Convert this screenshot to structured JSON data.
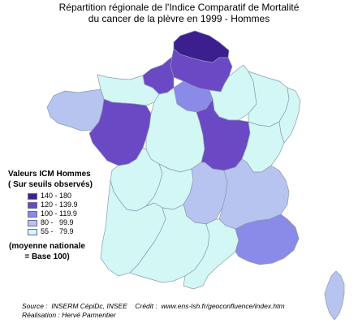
{
  "title": {
    "line1": "Répartition régionale de l'Indice Comparatif de Mortalité",
    "line2": "du cancer de la plèvre en 1999 - Hommes"
  },
  "legend": {
    "title1": "Valeurs ICM Hommes",
    "title2": "( Sur seuils observés)",
    "classes": [
      {
        "label": "140 - 180",
        "color": "#3c1f8f"
      },
      {
        "label": "120 - 139.9",
        "color": "#6b48c4"
      },
      {
        "label": "100 - 119.9",
        "color": "#8a8ae8"
      },
      {
        "label": "80 -   99.9",
        "color": "#b7c4f0"
      },
      {
        "label": "55 -   79.9",
        "color": "#d3f7f5"
      }
    ]
  },
  "note": {
    "line1": "(moyenne nationale",
    "line2": "= Base 100)"
  },
  "credits": {
    "source": "Source :  INSERM CépiDc, INSEE    Crédit :  www.ens-lsh.fr/geoconfluence/index.htm",
    "realisation": "Réalisation : Hervé Parmentier"
  },
  "regions": [
    {
      "name": "Nord-Pas-de-Calais",
      "class": 0
    },
    {
      "name": "Picardie",
      "class": 1
    },
    {
      "name": "Haute-Normandie",
      "class": 1
    },
    {
      "name": "Basse-Normandie",
      "class": 4
    },
    {
      "name": "Bretagne",
      "class": 3
    },
    {
      "name": "Pays de la Loire",
      "class": 1
    },
    {
      "name": "Île-de-France",
      "class": 2
    },
    {
      "name": "Champagne-Ardenne",
      "class": 4
    },
    {
      "name": "Lorraine",
      "class": 4
    },
    {
      "name": "Alsace",
      "class": 4
    },
    {
      "name": "Centre",
      "class": 4
    },
    {
      "name": "Bourgogne",
      "class": 1
    },
    {
      "name": "Franche-Comté",
      "class": 4
    },
    {
      "name": "Poitou-Charentes",
      "class": 4
    },
    {
      "name": "Limousin",
      "class": 4
    },
    {
      "name": "Auvergne",
      "class": 3
    },
    {
      "name": "Rhône-Alpes",
      "class": 3
    },
    {
      "name": "Aquitaine",
      "class": 4
    },
    {
      "name": "Midi-Pyrénées",
      "class": 4
    },
    {
      "name": "Languedoc-Roussillon",
      "class": 4
    },
    {
      "name": "Provence-Alpes-Côte d'Azur",
      "class": 2
    },
    {
      "name": "Corse",
      "class": 3
    }
  ]
}
